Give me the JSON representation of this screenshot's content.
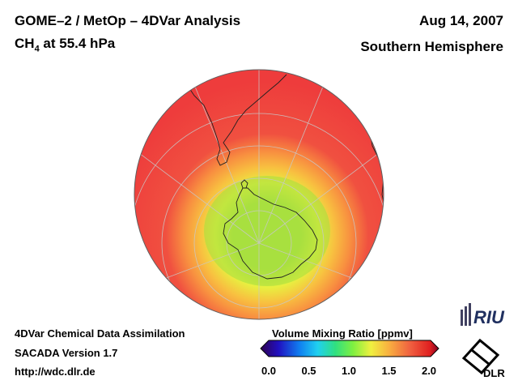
{
  "header": {
    "title": "GOME–2 / MetOp – 4DVar Analysis",
    "species_main": "CH",
    "species_sub": "4",
    "species_rest": " at 55.4 hPa",
    "date": "Aug 14, 2007",
    "hemisphere": "Southern Hemisphere"
  },
  "footer": {
    "line1": "4DVar Chemical Data Assimilation",
    "line2": "SACADA Version 1.7",
    "line3": "http://wdc.dlr.de"
  },
  "colorbar": {
    "label": "Volume Mixing Ratio [ppmv]",
    "ticks": [
      "0.0",
      "0.5",
      "1.0",
      "1.5",
      "2.0"
    ],
    "min": 0.0,
    "max": 2.0
  },
  "logos": {
    "riu_text": "RIU",
    "dlr_text": "DLR"
  },
  "map": {
    "projection": "orthographic",
    "center": "South Pole",
    "field": "CH4 volume mixing ratio",
    "polar_vortex_min_ppmv": 1.1,
    "background_ppmv": 1.8
  }
}
